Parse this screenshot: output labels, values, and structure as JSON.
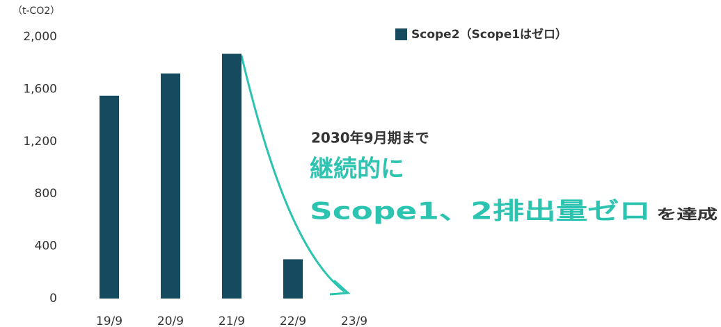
{
  "chart_data": {
    "type": "bar",
    "unit_label": "（t-CO2）",
    "legend_label": "Scope2（Scope1はゼロ）",
    "categories": [
      "19/9",
      "20/9",
      "21/9",
      "22/9",
      "23/9"
    ],
    "series": [
      {
        "name": "Scope2（Scope1はゼロ）",
        "color": "#164a5e",
        "values": [
          1550,
          1720,
          1870,
          300,
          0
        ]
      }
    ],
    "ylim": [
      0,
      2000
    ],
    "yticks": [
      0,
      400,
      800,
      {
        "value": 1200,
        "label": "1,200"
      },
      {
        "value": 1600,
        "label": "1,600"
      },
      {
        "value": 2000,
        "label": "2,000"
      }
    ],
    "annotations": [
      "2030年9月期まで",
      "継続的に",
      "Scope1、2排出量ゼロ",
      "を達成"
    ],
    "annotation_color": "#2cc4b0"
  }
}
